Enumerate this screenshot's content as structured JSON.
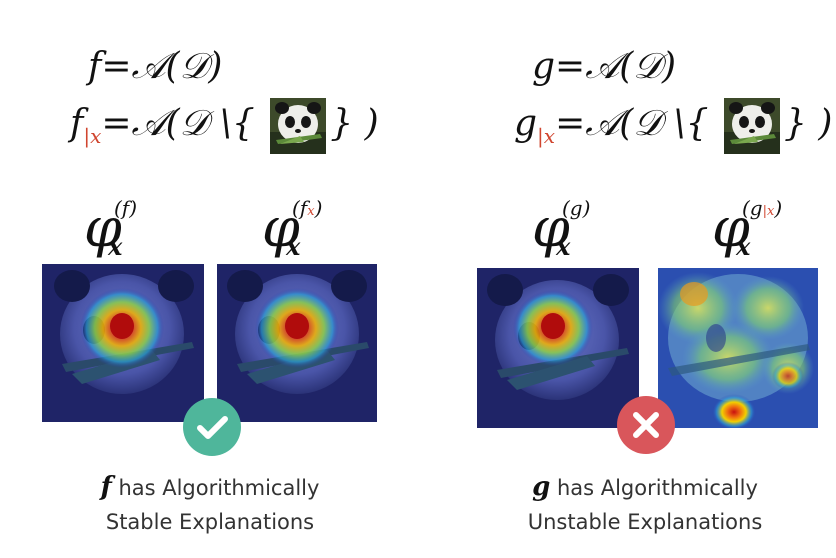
{
  "left": {
    "eq1": {
      "lhs": "f",
      "rhs": "=𝒜(𝒟)"
    },
    "eq2": {
      "lhs": "f",
      "sub": "|x",
      "rhs_a": "=𝒜(𝒟 \\{",
      "rhs_b": "} )"
    },
    "phi_a": {
      "sym": "φ",
      "x": "x",
      "sup": "(f)"
    },
    "phi_b": {
      "sym": "φ",
      "x": "x",
      "sup_a": "(f",
      "sup_sub": "x",
      "sup_b": ")"
    },
    "badge_icon": "check-icon",
    "badge_color": "#4fb69b",
    "caption_var": "f",
    "caption_line1": "has Algorithmically",
    "caption_line2": "Stable Explanations"
  },
  "right": {
    "eq1": {
      "lhs": "g",
      "rhs": "=𝒜(𝒟)"
    },
    "eq2": {
      "lhs": "g",
      "sub": "|x",
      "rhs_a": "=𝒜(𝒟 \\{",
      "rhs_b": "} )"
    },
    "phi_a": {
      "sym": "φ",
      "x": "x",
      "sup": "(g)"
    },
    "phi_b": {
      "sym": "φ",
      "x": "x",
      "sup_a": "(g",
      "sup_sub": "|x",
      "sup_b": ")"
    },
    "badge_icon": "cross-icon",
    "badge_color": "#d9565b",
    "caption_var": "g",
    "caption_line1": "has Algorithmically",
    "caption_line2": "Unstable Explanations"
  }
}
